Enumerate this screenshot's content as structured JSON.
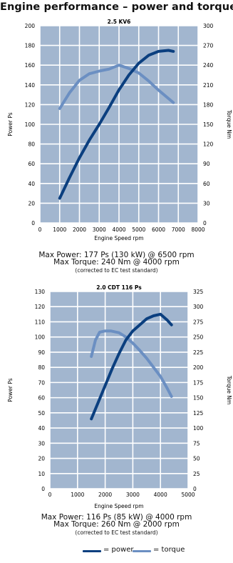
{
  "title": "Engine performance – power and torque",
  "colors": {
    "plot_bg": "#a2b6cf",
    "grid": "#ffffff",
    "power": "#0b3f7f",
    "torque": "#6b8fc2"
  },
  "chart_data": [
    {
      "type": "line",
      "title": "2.5 KV6",
      "xlabel": "Engine Speed rpm",
      "ylabel": "Power Ps",
      "y2label": "Torque Nm",
      "xlim": [
        0,
        8000
      ],
      "ylim": [
        0,
        200
      ],
      "y2lim": [
        0,
        300
      ],
      "xticks": [
        "0",
        "1000",
        "2000",
        "3000",
        "4000",
        "5000",
        "6000",
        "7000",
        "8000"
      ],
      "yticks": [
        "0",
        "20",
        "40",
        "60",
        "80",
        "100",
        "120",
        "140",
        "160",
        "180",
        "200"
      ],
      "y2ticks": [
        "0",
        "30",
        "60",
        "90",
        "120",
        "150",
        "180",
        "210",
        "240",
        "270",
        "300"
      ],
      "grid": true,
      "series": [
        {
          "name": "power",
          "axis": "left",
          "x": [
            1000,
            1500,
            2000,
            2500,
            3000,
            3500,
            4000,
            4500,
            5000,
            5500,
            6000,
            6500,
            6750
          ],
          "y": [
            25,
            46,
            66,
            84,
            100,
            117,
            135,
            150,
            162,
            170,
            174,
            175,
            174
          ]
        },
        {
          "name": "torque",
          "axis": "right",
          "x": [
            1000,
            1500,
            2000,
            2500,
            3000,
            3500,
            4000,
            4500,
            5000,
            5500,
            6000,
            6750
          ],
          "y": [
            174,
            198,
            217,
            227,
            231,
            234,
            240,
            235,
            228,
            216,
            202,
            183
          ]
        }
      ],
      "caption": {
        "line1": "Max Power: 177 Ps (130 kW) @ 6500 rpm",
        "line2": "Max Torque: 240 Nm @ 4000 rpm",
        "line3": "(corrected to EC test standard)"
      }
    },
    {
      "type": "line",
      "title": "2.0 CDT 116 Ps",
      "xlabel": "Engine Speed rpm",
      "ylabel": "Power Ps",
      "y2label": "Torque Nm",
      "xlim": [
        0,
        5000
      ],
      "ylim": [
        0,
        130
      ],
      "y2lim": [
        0,
        325
      ],
      "xticks": [
        "0",
        "1000",
        "2000",
        "3000",
        "4000",
        "5000"
      ],
      "yticks": [
        "0",
        "10",
        "20",
        "30",
        "40",
        "50",
        "60",
        "70",
        "80",
        "90",
        "100",
        "110",
        "120",
        "130"
      ],
      "y2ticks": [
        "0",
        "25",
        "50",
        "75",
        "100",
        "125",
        "150",
        "175",
        "200",
        "225",
        "250",
        "275",
        "300",
        "325"
      ],
      "grid": true,
      "series": [
        {
          "name": "power",
          "axis": "left",
          "x": [
            1500,
            1750,
            2000,
            2250,
            2500,
            2750,
            3000,
            3250,
            3500,
            3750,
            4000,
            4250,
            4400
          ],
          "y": [
            46,
            57,
            68,
            79,
            89,
            98,
            104,
            108,
            112,
            114,
            115,
            111,
            108
          ]
        },
        {
          "name": "torque",
          "axis": "right",
          "x": [
            1500,
            1650,
            1800,
            2000,
            2200,
            2500,
            2750,
            3000,
            3250,
            3500,
            3750,
            4000,
            4250,
            4400
          ],
          "y": [
            218,
            245,
            258,
            260,
            260,
            257,
            250,
            240,
            228,
            215,
            200,
            185,
            165,
            152
          ]
        }
      ],
      "caption": {
        "line1": "Max Power: 116 Ps (85 kW) @ 4000 rpm",
        "line2": "Max Torque: 260 Nm @ 2000 rpm",
        "line3": "(corrected to EC test standard)"
      }
    }
  ],
  "legend": {
    "power": "= power",
    "torque": "= torque"
  }
}
